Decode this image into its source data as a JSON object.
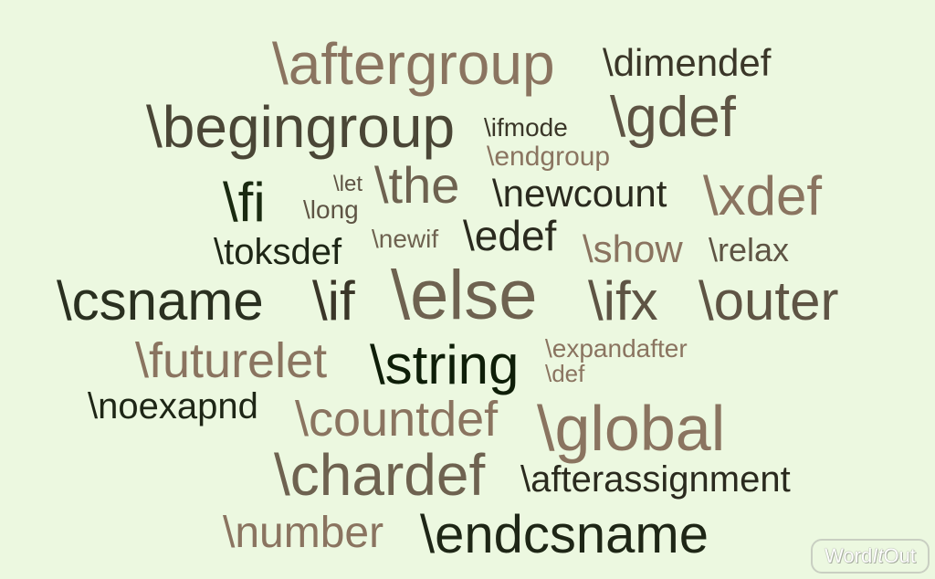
{
  "colors": {
    "background": "#ecf8e0",
    "dark_green": "#1e2a14",
    "olive": "#3f4530",
    "taupe": "#5a5040",
    "tan": "#8a7460"
  },
  "words": [
    {
      "id": "aftergroup",
      "text": "\\aftergroup",
      "color": "#8a7460"
    },
    {
      "id": "dimendef",
      "text": "\\dimendef",
      "color": "#3a3628"
    },
    {
      "id": "begingroup",
      "text": "\\begingroup",
      "color": "#4a4636"
    },
    {
      "id": "ifmode",
      "text": "\\ifmode",
      "color": "#3a3628"
    },
    {
      "id": "gdef",
      "text": "\\gdef",
      "color": "#5e5444"
    },
    {
      "id": "endgroup",
      "text": "\\endgroup",
      "color": "#8a7460"
    },
    {
      "id": "fi",
      "text": "\\fi",
      "color": "#1a2a10"
    },
    {
      "id": "let",
      "text": "\\let",
      "color": "#5e5444"
    },
    {
      "id": "long",
      "text": "\\long",
      "color": "#5e5444"
    },
    {
      "id": "the",
      "text": "\\the",
      "color": "#6e6250"
    },
    {
      "id": "newcount",
      "text": "\\newcount",
      "color": "#2a2a1e"
    },
    {
      "id": "xdef",
      "text": "\\xdef",
      "color": "#8a7460"
    },
    {
      "id": "toksdef",
      "text": "\\toksdef",
      "color": "#1e2616"
    },
    {
      "id": "newif",
      "text": "\\newif",
      "color": "#6e6250"
    },
    {
      "id": "edef",
      "text": "\\edef",
      "color": "#2a2a1e"
    },
    {
      "id": "show",
      "text": "\\show",
      "color": "#8a7460"
    },
    {
      "id": "relax",
      "text": "\\relax",
      "color": "#5e5444"
    },
    {
      "id": "csname",
      "text": "\\csname",
      "color": "#2a3020"
    },
    {
      "id": "if",
      "text": "\\if",
      "color": "#3a3628"
    },
    {
      "id": "else",
      "text": "\\else",
      "color": "#6e6250"
    },
    {
      "id": "ifx",
      "text": "\\ifx",
      "color": "#5e5444"
    },
    {
      "id": "outer",
      "text": "\\outer",
      "color": "#5e5444"
    },
    {
      "id": "futurelet",
      "text": "\\futurelet",
      "color": "#8a7460"
    },
    {
      "id": "string",
      "text": "\\string",
      "color": "#0e1e08"
    },
    {
      "id": "expandafter",
      "text": "\\expandafter",
      "color": "#8a7460"
    },
    {
      "id": "def",
      "text": "\\def",
      "color": "#8a7460"
    },
    {
      "id": "noexapnd",
      "text": "\\noexapnd",
      "color": "#1e2616"
    },
    {
      "id": "countdef",
      "text": "\\countdef",
      "color": "#8a7460"
    },
    {
      "id": "global",
      "text": "\\global",
      "color": "#8a7460"
    },
    {
      "id": "chardef",
      "text": "\\chardef",
      "color": "#6e6250"
    },
    {
      "id": "afterassignment",
      "text": "\\afterassignment",
      "color": "#2a2a1e"
    },
    {
      "id": "number",
      "text": "\\number",
      "color": "#8a7460"
    },
    {
      "id": "endcsname",
      "text": "\\endcsname",
      "color": "#1e2616"
    }
  ],
  "logo": {
    "text_part1": "Word",
    "text_part2": "It",
    "text_part3": "Out"
  }
}
